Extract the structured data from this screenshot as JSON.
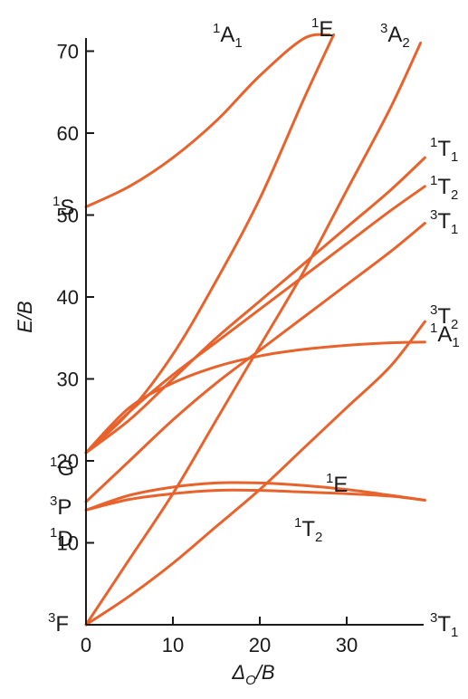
{
  "chart_data": {
    "type": "line",
    "title": "",
    "xlabel": "Δ_O/B",
    "ylabel": "E/B",
    "xlim": [
      0,
      39
    ],
    "ylim": [
      0,
      74
    ],
    "xticks": [
      0,
      10,
      20,
      30
    ],
    "yticks": [
      10,
      20,
      30,
      40,
      50,
      60,
      70
    ],
    "colors": {
      "curve": "#e8622c",
      "axis": "#1a1a1a"
    },
    "free_ion_terms": [
      {
        "id": "3F",
        "mult": "3",
        "letter": "F",
        "y": 0
      },
      {
        "id": "1D",
        "mult": "1",
        "letter": "D",
        "y": 13.5
      },
      {
        "id": "3P",
        "mult": "3",
        "letter": "P",
        "y": 17
      },
      {
        "id": "1G",
        "mult": "1",
        "letter": "G",
        "y": 22
      },
      {
        "id": "1S",
        "mult": "1",
        "letter": "S",
        "y": 50.5
      }
    ],
    "top_labels": [
      {
        "id": "1A1-top",
        "mult": "1",
        "letter": "A",
        "sub": "1"
      },
      {
        "id": "1E-top",
        "mult": "1",
        "letter": "E",
        "sub": ""
      },
      {
        "id": "3A2-top",
        "mult": "3",
        "letter": "A",
        "sub": "2"
      }
    ],
    "right_labels": [
      {
        "id": "1T1",
        "mult": "1",
        "letter": "T",
        "sub": "1",
        "y": 57
      },
      {
        "id": "1T2-upper",
        "mult": "1",
        "letter": "T",
        "sub": "2",
        "y": 53
      },
      {
        "id": "3T1-upper",
        "mult": "3",
        "letter": "T",
        "sub": "1",
        "y": 49
      },
      {
        "id": "3T2",
        "mult": "3",
        "letter": "T",
        "sub": "2",
        "y": 38
      },
      {
        "id": "1A1-right",
        "mult": "1",
        "letter": "A",
        "sub": "1",
        "y": 34
      },
      {
        "id": "3T1-ground",
        "mult": "3",
        "letter": "T",
        "sub": "1",
        "y": -1
      }
    ],
    "inner_labels": [
      {
        "id": "1E-low",
        "mult": "1",
        "letter": "E",
        "sub": "",
        "x": 27,
        "y": 19
      },
      {
        "id": "1T2-low",
        "mult": "1",
        "letter": "T",
        "sub": "2",
        "x": 24,
        "y": 9
      }
    ],
    "series": [
      {
        "name": "1A1",
        "x": [
          0,
          5,
          10,
          15,
          20,
          25,
          28
        ],
        "y": [
          51,
          53.5,
          57,
          61.5,
          67,
          71.5,
          72
        ]
      },
      {
        "name": "1E",
        "x": [
          0,
          5,
          10,
          15,
          20,
          25,
          28.5
        ],
        "y": [
          21,
          26,
          33,
          42,
          52,
          64,
          72
        ]
      },
      {
        "name": "3A2",
        "x": [
          0,
          5,
          10,
          15,
          20,
          25,
          30,
          35,
          38.5
        ],
        "y": [
          0,
          8,
          16,
          25,
          34,
          43,
          53,
          63,
          71
        ]
      },
      {
        "name": "1T1",
        "x": [
          0,
          5,
          10,
          15,
          20,
          25,
          30,
          35,
          39
        ],
        "y": [
          21,
          25,
          30,
          35,
          39.5,
          44,
          48.5,
          53,
          57
        ]
      },
      {
        "name": "1T2",
        "x": [
          0,
          5,
          10,
          15,
          20,
          25,
          30,
          35,
          39
        ],
        "y": [
          21,
          26,
          30.5,
          34.5,
          38.5,
          42.5,
          46.5,
          50.5,
          53.5
        ]
      },
      {
        "name": "3T1(P)",
        "x": [
          0,
          5,
          10,
          15,
          20,
          25,
          30,
          35,
          39
        ],
        "y": [
          15,
          20,
          25,
          29.5,
          33.5,
          37.5,
          41.5,
          45.5,
          49
        ]
      },
      {
        "name": "1A1(G)",
        "x": [
          0,
          5,
          10,
          15,
          20,
          25,
          30,
          35,
          39
        ],
        "y": [
          21,
          26.5,
          29.5,
          31.5,
          32.8,
          33.6,
          34.1,
          34.4,
          34.5
        ]
      },
      {
        "name": "3T2",
        "x": [
          0,
          5,
          10,
          15,
          20,
          25,
          30,
          35,
          39
        ],
        "y": [
          0,
          3.5,
          7.5,
          12,
          16.5,
          21.5,
          26.5,
          31.5,
          37
        ]
      },
      {
        "name": "1E(low)",
        "x": [
          0,
          5,
          10,
          15,
          20,
          25,
          30,
          35,
          39
        ],
        "y": [
          14,
          15.8,
          16.8,
          17.3,
          17.3,
          17,
          16.5,
          15.8,
          15.2
        ]
      },
      {
        "name": "1T2(low)",
        "x": [
          0,
          5,
          10,
          15,
          20,
          25,
          30,
          35,
          39
        ],
        "y": [
          14,
          15.3,
          16,
          16.4,
          16.4,
          16.2,
          16,
          15.7,
          15.2
        ]
      }
    ]
  }
}
